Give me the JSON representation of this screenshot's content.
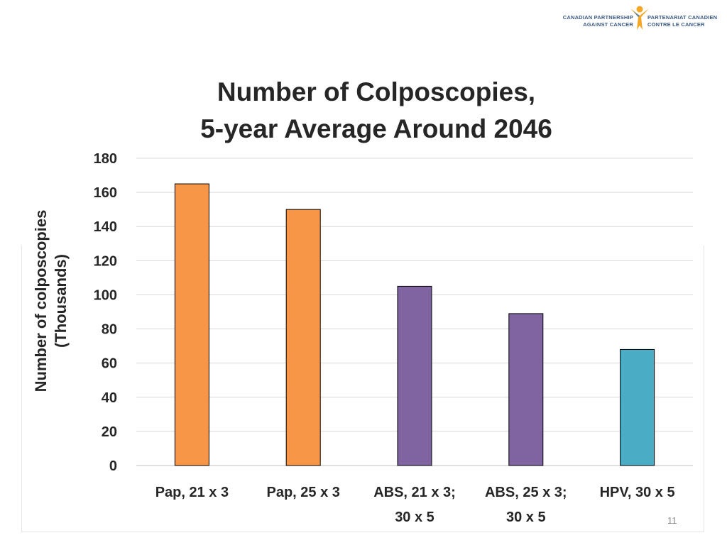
{
  "logo": {
    "left_line1": "CANADIAN PARTNERSHIP",
    "left_line2": "AGAINST CANCER",
    "right_line1": "PARTENARIAT CANADIEN",
    "right_line2": "CONTRE LE CANCER"
  },
  "page_number": "11",
  "chart_data": {
    "type": "bar",
    "title": [
      "Number of Colposcopies,",
      "5-year Average Around 2046"
    ],
    "ylabel": [
      "Number of colposcopies",
      "(Thousands)"
    ],
    "xlabel": "",
    "categories": [
      [
        "Pap, 21 x 3"
      ],
      [
        "Pap, 25 x 3"
      ],
      [
        "ABS, 21 x 3;",
        "30 x 5"
      ],
      [
        "ABS, 25 x 3;",
        "30 x 5"
      ],
      [
        "HPV, 30 x 5"
      ]
    ],
    "values": [
      165,
      150,
      105,
      89,
      68
    ],
    "bar_colors": [
      "#F79646",
      "#F79646",
      "#8064A2",
      "#8064A2",
      "#4BACC6"
    ],
    "ylim": [
      0,
      180
    ],
    "yticks": [
      0,
      20,
      40,
      60,
      80,
      100,
      120,
      140,
      160,
      180
    ],
    "grid": true,
    "legend": "none"
  }
}
